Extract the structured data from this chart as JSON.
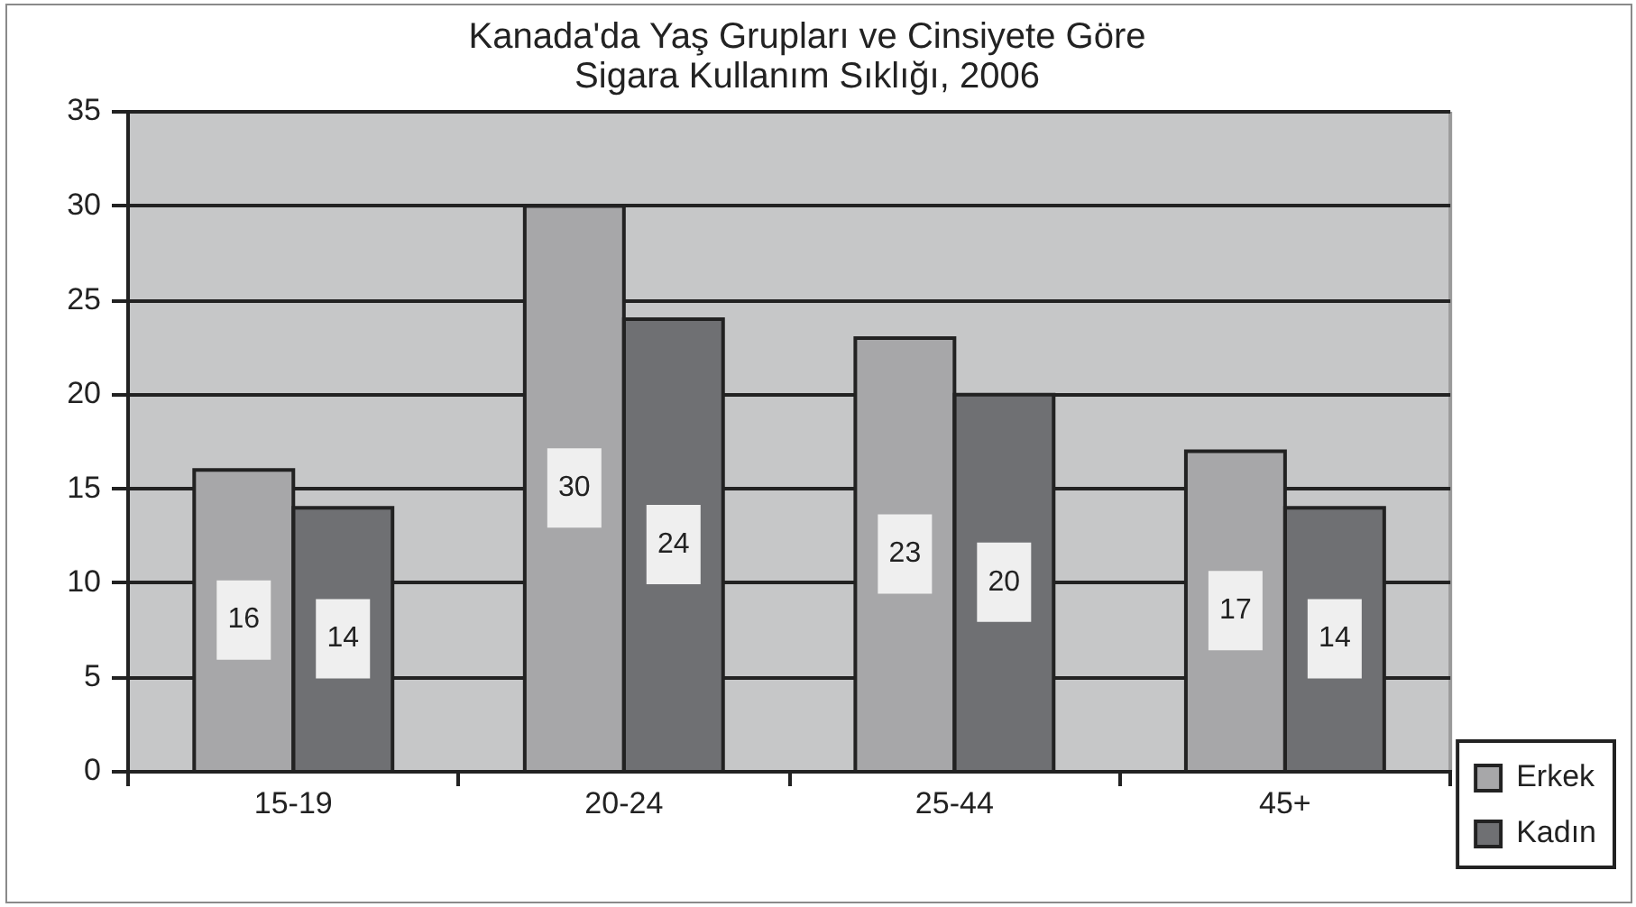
{
  "chart_data": {
    "type": "bar",
    "title": "Kanada'da Yaş Grupları ve Cinsiyete Göre Sigara Kullanım Sıklığı, 2006",
    "categories": [
      "15-19",
      "20-24",
      "25-44",
      "45+"
    ],
    "series": [
      {
        "name": "Erkek",
        "color": "#a7a7a9",
        "values": [
          16,
          30,
          23,
          17
        ]
      },
      {
        "name": "Kadın",
        "color": "#6f7073",
        "values": [
          14,
          24,
          20,
          14
        ]
      }
    ],
    "ylim": [
      0,
      35
    ],
    "yticks": [
      0,
      5,
      10,
      15,
      20,
      25,
      30,
      35
    ],
    "grid": "y",
    "legend": "bottom right",
    "data_labels": true
  }
}
